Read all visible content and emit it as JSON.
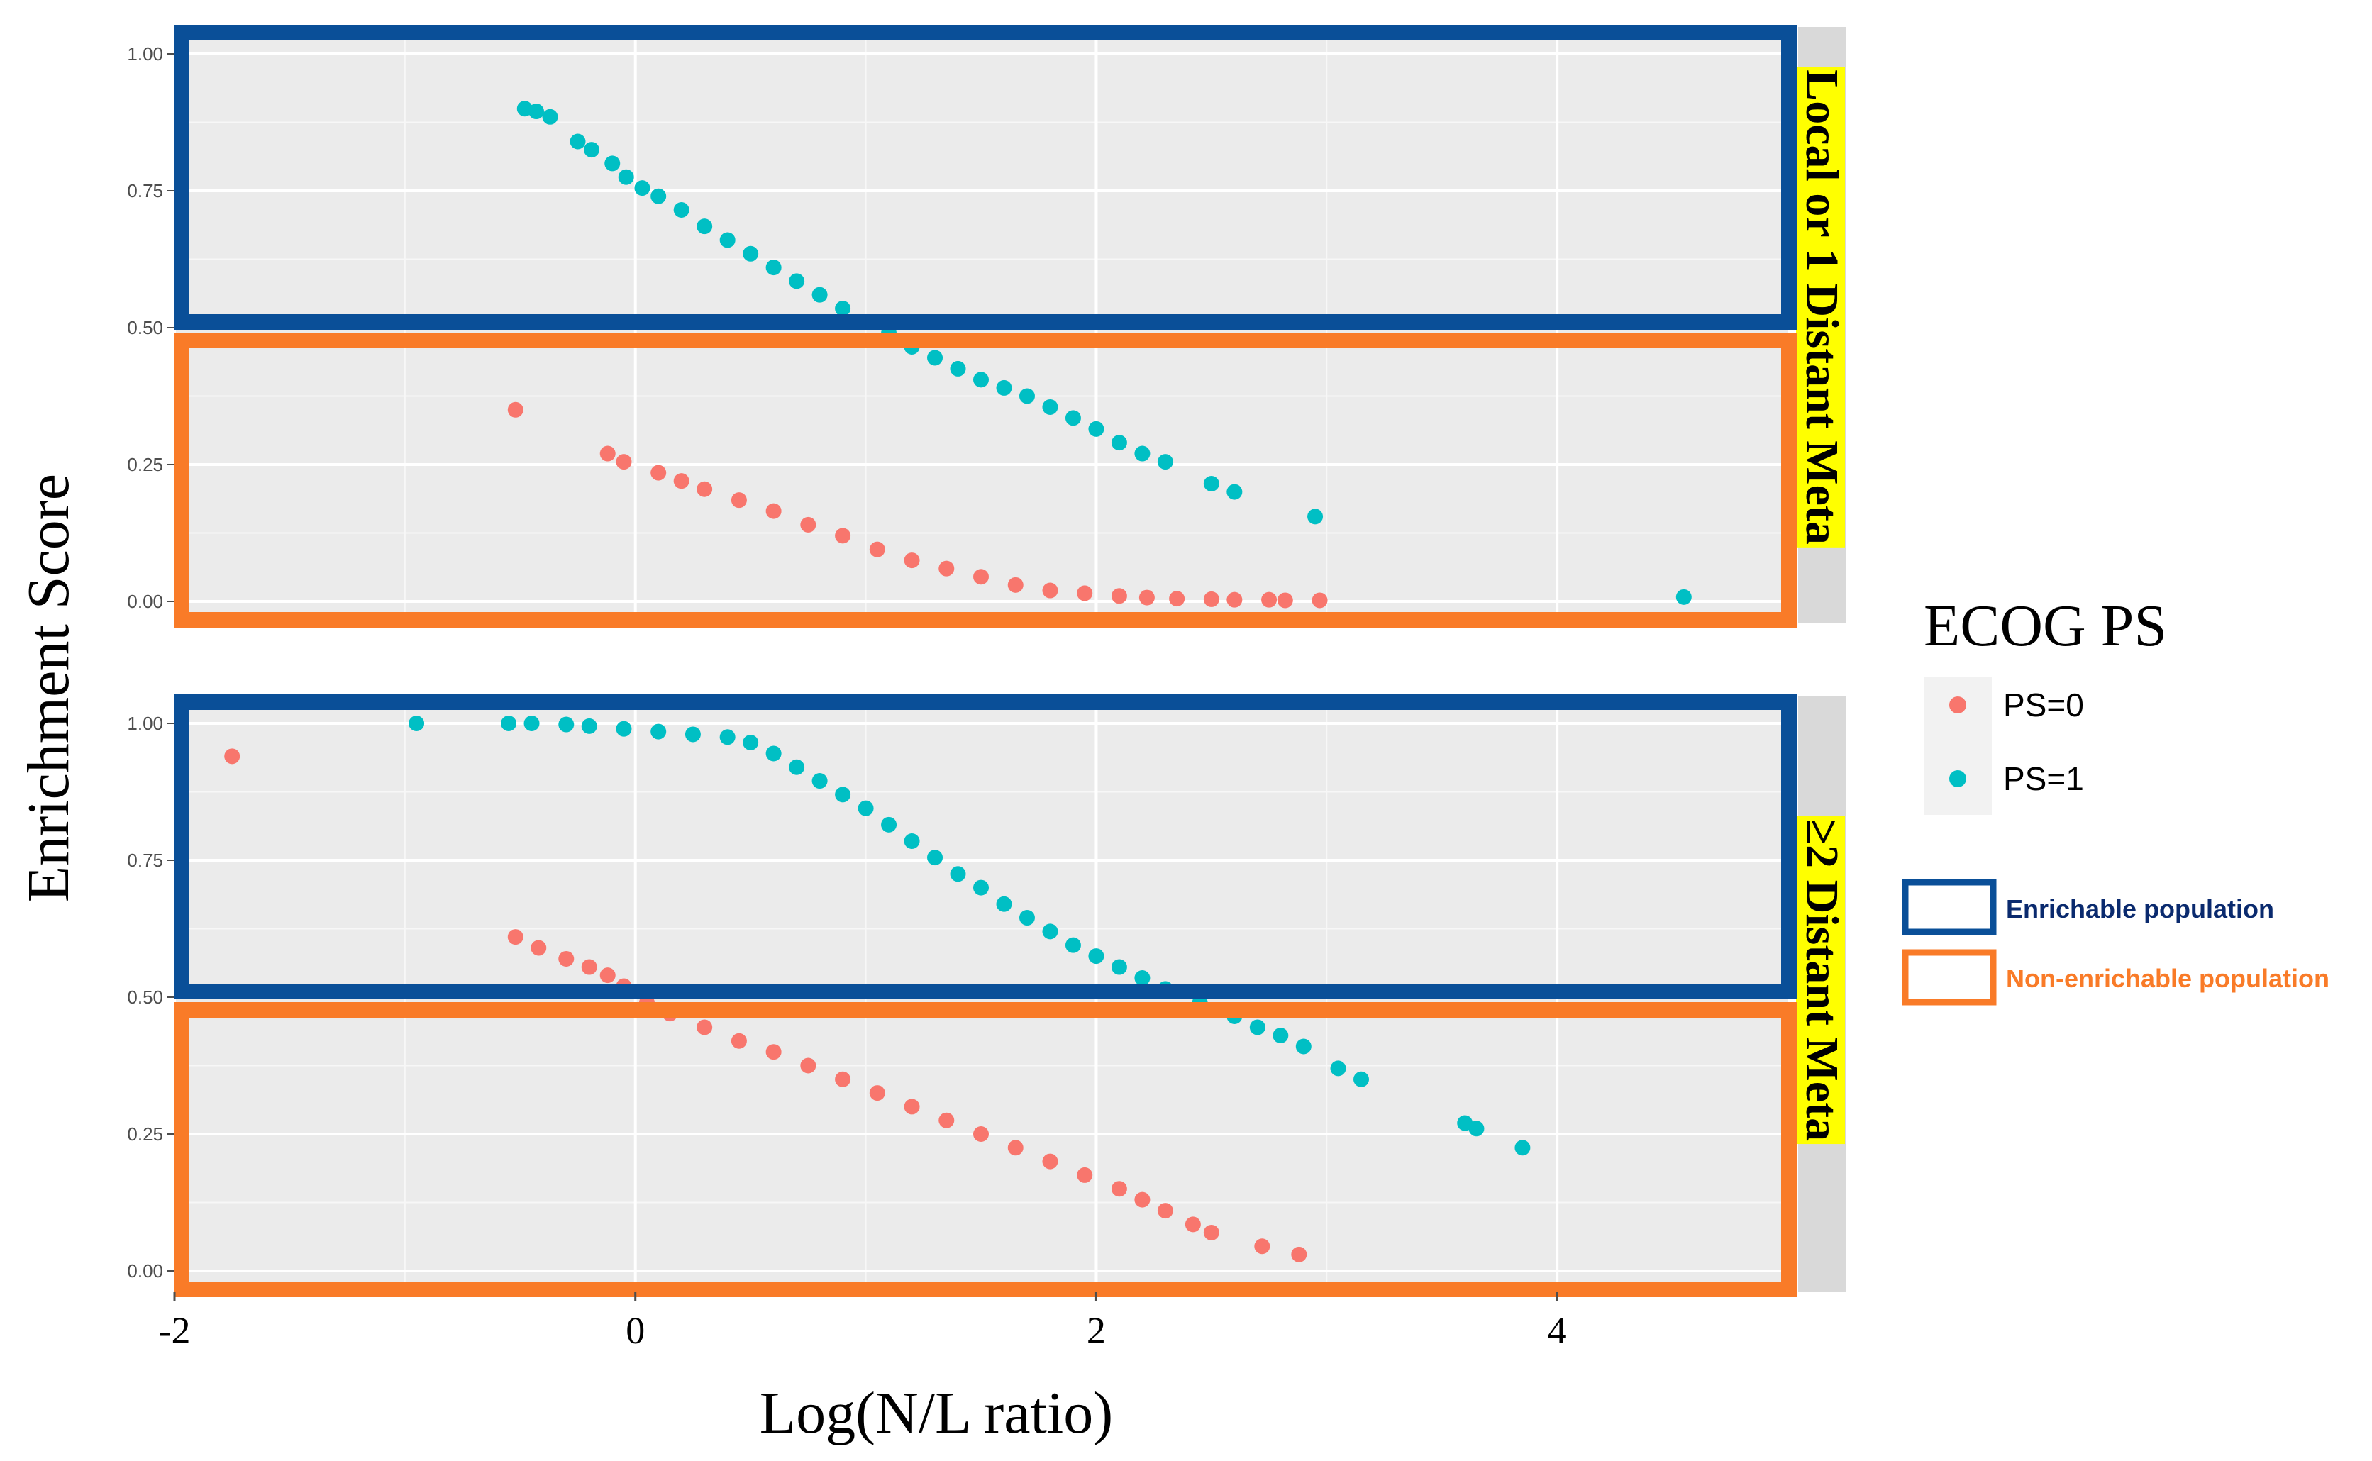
{
  "chart_data": {
    "type": "scatter",
    "xlabel": "Log(N/L ratio)",
    "ylabel": "Enrichment Score",
    "xlim": [
      -2,
      5
    ],
    "ylim": [
      0,
      1
    ],
    "x_ticks": [
      -2,
      0,
      2,
      4
    ],
    "x_tick_labels": [
      "-2",
      "0",
      "2",
      "4"
    ],
    "y_ticks": [
      0,
      0.25,
      0.5,
      0.75,
      1
    ],
    "y_tick_labels": [
      "0.00",
      "0.25",
      "0.50",
      "0.75",
      "1.00"
    ],
    "legend": {
      "title": "ECOG PS",
      "entries": [
        {
          "label": "PS=0",
          "color": "#f8766d"
        },
        {
          "label": "PS=1",
          "color": "#00bfc4"
        }
      ]
    },
    "annotations": {
      "threshold": 0.5,
      "enrichable": {
        "label": "Enrichable population",
        "color": "#0a4f98",
        "label_color": "#0a2a6e"
      },
      "non_enrichable": {
        "label": "Non-enrichable population",
        "color": "#f97b28",
        "label_color": "#f97b28"
      },
      "strip_highlight": "#ffff00"
    },
    "panels": [
      {
        "strip": "Local or 1 Distant Meta",
        "series": [
          {
            "name": "PS=0",
            "points": [
              [
                -0.52,
                0.35
              ],
              [
                -0.12,
                0.27
              ],
              [
                -0.05,
                0.255
              ],
              [
                0.1,
                0.235
              ],
              [
                0.2,
                0.22
              ],
              [
                0.3,
                0.205
              ],
              [
                0.45,
                0.185
              ],
              [
                0.6,
                0.165
              ],
              [
                0.75,
                0.14
              ],
              [
                0.9,
                0.12
              ],
              [
                1.05,
                0.095
              ],
              [
                1.2,
                0.075
              ],
              [
                1.35,
                0.06
              ],
              [
                1.5,
                0.045
              ],
              [
                1.65,
                0.03
              ],
              [
                1.8,
                0.02
              ],
              [
                1.95,
                0.015
              ],
              [
                2.1,
                0.01
              ],
              [
                2.22,
                0.007
              ],
              [
                2.35,
                0.005
              ],
              [
                2.5,
                0.004
              ],
              [
                2.6,
                0.003
              ],
              [
                2.75,
                0.003
              ],
              [
                2.82,
                0.002
              ],
              [
                2.97,
                0.002
              ]
            ]
          },
          {
            "name": "PS=1",
            "points": [
              [
                -0.48,
                0.9
              ],
              [
                -0.43,
                0.895
              ],
              [
                -0.37,
                0.885
              ],
              [
                -0.25,
                0.84
              ],
              [
                -0.19,
                0.825
              ],
              [
                -0.1,
                0.8
              ],
              [
                -0.04,
                0.775
              ],
              [
                0.03,
                0.755
              ],
              [
                0.1,
                0.74
              ],
              [
                0.2,
                0.715
              ],
              [
                0.3,
                0.685
              ],
              [
                0.4,
                0.66
              ],
              [
                0.5,
                0.635
              ],
              [
                0.6,
                0.61
              ],
              [
                0.7,
                0.585
              ],
              [
                0.8,
                0.56
              ],
              [
                0.9,
                0.535
              ],
              [
                1.0,
                0.51
              ],
              [
                1.1,
                0.49
              ],
              [
                1.2,
                0.465
              ],
              [
                1.3,
                0.445
              ],
              [
                1.4,
                0.425
              ],
              [
                1.5,
                0.405
              ],
              [
                1.6,
                0.39
              ],
              [
                1.7,
                0.375
              ],
              [
                1.8,
                0.355
              ],
              [
                1.9,
                0.335
              ],
              [
                2.0,
                0.315
              ],
              [
                2.1,
                0.29
              ],
              [
                2.2,
                0.27
              ],
              [
                2.3,
                0.255
              ],
              [
                2.5,
                0.215
              ],
              [
                2.6,
                0.2
              ],
              [
                2.95,
                0.155
              ],
              [
                4.55,
                0.008
              ]
            ]
          }
        ]
      },
      {
        "strip": "≥2 Distant Meta",
        "series": [
          {
            "name": "PS=0",
            "points": [
              [
                -1.75,
                0.94
              ],
              [
                -0.52,
                0.61
              ],
              [
                -0.42,
                0.59
              ],
              [
                -0.3,
                0.57
              ],
              [
                -0.2,
                0.555
              ],
              [
                -0.12,
                0.54
              ],
              [
                -0.05,
                0.52
              ],
              [
                0.05,
                0.49
              ],
              [
                0.15,
                0.47
              ],
              [
                0.3,
                0.445
              ],
              [
                0.45,
                0.42
              ],
              [
                0.6,
                0.4
              ],
              [
                0.75,
                0.375
              ],
              [
                0.9,
                0.35
              ],
              [
                1.05,
                0.325
              ],
              [
                1.2,
                0.3
              ],
              [
                1.35,
                0.275
              ],
              [
                1.5,
                0.25
              ],
              [
                1.65,
                0.225
              ],
              [
                1.8,
                0.2
              ],
              [
                1.95,
                0.175
              ],
              [
                2.1,
                0.15
              ],
              [
                2.2,
                0.13
              ],
              [
                2.3,
                0.11
              ],
              [
                2.42,
                0.085
              ],
              [
                2.5,
                0.07
              ],
              [
                2.72,
                0.045
              ],
              [
                2.88,
                0.03
              ]
            ]
          },
          {
            "name": "PS=1",
            "points": [
              [
                -0.95,
                1.0
              ],
              [
                -0.55,
                1.0
              ],
              [
                -0.45,
                1.0
              ],
              [
                -0.3,
                0.998
              ],
              [
                -0.2,
                0.995
              ],
              [
                -0.05,
                0.99
              ],
              [
                0.1,
                0.985
              ],
              [
                0.25,
                0.98
              ],
              [
                0.4,
                0.975
              ],
              [
                0.5,
                0.965
              ],
              [
                0.6,
                0.945
              ],
              [
                0.7,
                0.92
              ],
              [
                0.8,
                0.895
              ],
              [
                0.9,
                0.87
              ],
              [
                1.0,
                0.845
              ],
              [
                1.1,
                0.815
              ],
              [
                1.2,
                0.785
              ],
              [
                1.3,
                0.755
              ],
              [
                1.4,
                0.725
              ],
              [
                1.5,
                0.7
              ],
              [
                1.6,
                0.67
              ],
              [
                1.7,
                0.645
              ],
              [
                1.8,
                0.62
              ],
              [
                1.9,
                0.595
              ],
              [
                2.0,
                0.575
              ],
              [
                2.1,
                0.555
              ],
              [
                2.2,
                0.535
              ],
              [
                2.3,
                0.515
              ],
              [
                2.45,
                0.49
              ],
              [
                2.6,
                0.465
              ],
              [
                2.7,
                0.445
              ],
              [
                2.8,
                0.43
              ],
              [
                2.9,
                0.41
              ],
              [
                3.05,
                0.37
              ],
              [
                3.15,
                0.35
              ],
              [
                3.6,
                0.27
              ],
              [
                3.65,
                0.26
              ],
              [
                3.85,
                0.225
              ]
            ]
          }
        ]
      }
    ]
  }
}
